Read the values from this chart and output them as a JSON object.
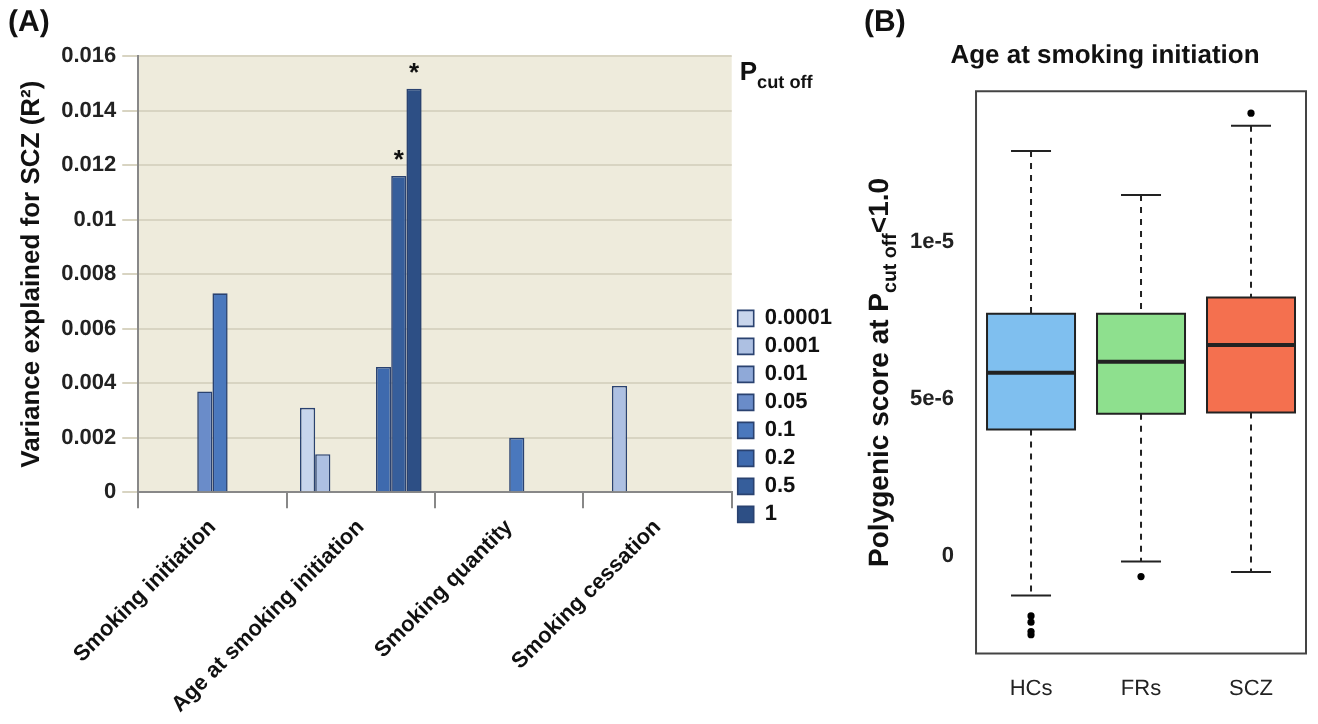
{
  "chart_data": [
    {
      "type": "bar",
      "annotations": [
        "(A)"
      ],
      "ylabel": "Variance explained for SCZ (R²)",
      "legend_title": "P$_{cut off}$",
      "legend": "right",
      "grid": "y",
      "categories": [
        "Smoking initiation",
        "Age at smoking initiation",
        "Smoking quantity",
        "Smoking cessation"
      ],
      "ylim": [
        0,
        0.016
      ],
      "yticks": [
        0,
        0.002,
        0.004,
        0.006,
        0.008,
        {
          "value": 0.01,
          "label": "0.01"
        },
        0.012,
        0.014,
        0.016
      ],
      "series": [
        {
          "name": "0.0001",
          "color": "#c8d5ec",
          "values": [
            null,
            0.0031,
            null,
            null
          ]
        },
        {
          "name": "0.001",
          "color": "#adc0e2",
          "values": [
            null,
            0.0014,
            null,
            0.0039
          ]
        },
        {
          "name": "0.01",
          "color": "#8fa9d8",
          "values": [
            null,
            null,
            null,
            null
          ]
        },
        {
          "name": "0.05",
          "color": "#6a8cc9",
          "values": [
            0.0037,
            null,
            0,
            0
          ]
        },
        {
          "name": "0.1",
          "color": "#4a78bd",
          "values": [
            0.0073,
            null,
            0.002,
            null
          ]
        },
        {
          "name": "0.2",
          "color": "#3e6aae",
          "values": [
            null,
            0.0046,
            null,
            null
          ]
        },
        {
          "name": "0.5",
          "color": "#365e9b",
          "values": [
            null,
            0.0116,
            null,
            null
          ],
          "value_labels": [
            null,
            "*",
            null,
            null
          ]
        },
        {
          "name": "1",
          "color": "#2d4f85",
          "values": [
            null,
            0.0148,
            null,
            null
          ],
          "value_labels": [
            null,
            "*",
            null,
            null
          ]
        }
      ]
    },
    {
      "type": "box",
      "title": "Age at smoking initiation",
      "annotations": [
        "(B)"
      ],
      "ylabel": "Polygenic score at P$_{cut off}$<1.0",
      "grid": false,
      "categories": [
        "HCs",
        "FRs",
        "SCZ"
      ],
      "colors": [
        "#7fbfef",
        "#8ee08e",
        "#f4704f"
      ],
      "ylim": [
        -3.1e-06,
        1.48e-05
      ],
      "yticks": [
        0,
        {
          "value": 5e-06,
          "label": "5e-6"
        },
        {
          "value": 1e-05,
          "label": "1e-5"
        }
      ],
      "boxes": [
        {
          "low": -1.25e-06,
          "q1": 4.03e-06,
          "median": 5.84e-06,
          "q3": 7.72e-06,
          "high": 1.29e-05,
          "outliers": [
            -1.9e-06,
            -2.1e-06,
            -2.4e-06,
            -2.5e-06
          ]
        },
        {
          "low": -1.7e-07,
          "q1": 4.53e-06,
          "median": 6.19e-06,
          "q3": 7.72e-06,
          "high": 1.15e-05,
          "outliers": [
            -6.5e-07
          ]
        },
        {
          "low": -5e-07,
          "q1": 4.57e-06,
          "median": 6.72e-06,
          "q3": 8.23e-06,
          "high": 1.37e-05,
          "outliers": [
            1.41e-05
          ]
        }
      ]
    }
  ]
}
